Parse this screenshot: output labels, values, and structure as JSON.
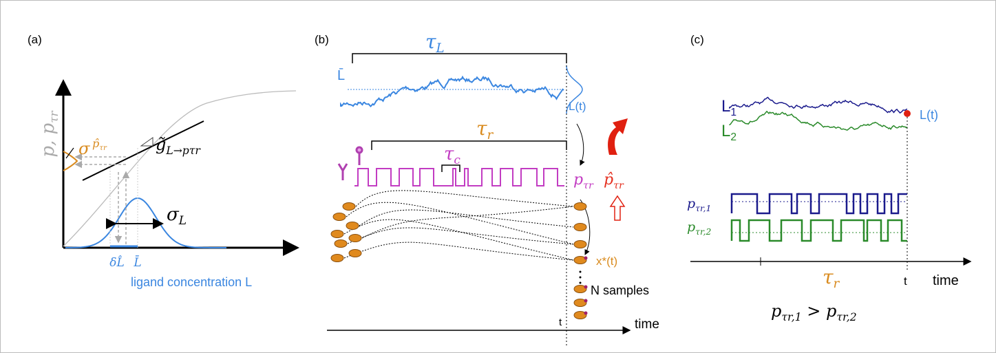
{
  "panel_a": {
    "label": "(a)",
    "y_axis": {
      "text": "p, p",
      "sub": "τr"
    },
    "sigma": "σ",
    "p_hat": {
      "text": "p̂",
      "sub": "τr"
    },
    "gain": {
      "text": "g̃",
      "sub": "L→pτr"
    },
    "sigma_L": {
      "text": "σ",
      "sub": "L"
    },
    "delta_L_hat": "δL̂",
    "L_bar": "L̄",
    "x_axis": "ligand concentration L"
  },
  "panel_b": {
    "label": "(b)",
    "tau_L": {
      "text": "τ",
      "sub": "L"
    },
    "L_bar": "L̄",
    "L_t": "L(t)",
    "tau_r": {
      "text": "τ",
      "sub": "r"
    },
    "tau_c": {
      "text": "τ",
      "sub": "c"
    },
    "p": {
      "text": "p",
      "sub": "τr"
    },
    "p_hat": {
      "text": "p̂",
      "sub": "τr"
    },
    "x_star": "x*(t)",
    "n_samples": "N samples",
    "t": "t",
    "time": "time"
  },
  "panel_c": {
    "label": "(c)",
    "L1": {
      "text": "L",
      "sub": "1"
    },
    "L2": {
      "text": "L",
      "sub": "2"
    },
    "L_t": "L(t)",
    "p1": {
      "text": "p",
      "sub": "τr,1"
    },
    "p2": {
      "text": "p",
      "sub": "τr,2"
    },
    "tau_r": {
      "text": "τ",
      "sub": "r"
    },
    "t": "t",
    "time": "time",
    "inequality": {
      "left": {
        "text": "p",
        "sub": "τr,1"
      },
      "op": " > ",
      "right": {
        "text": "p",
        "sub": "τr,2"
      }
    }
  }
}
